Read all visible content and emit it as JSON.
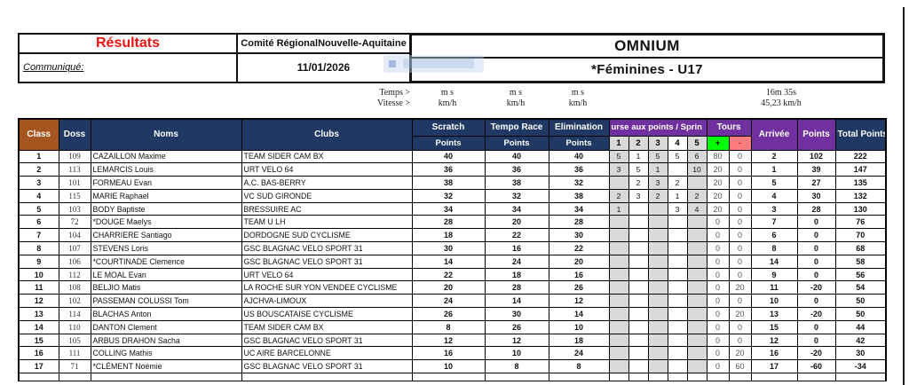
{
  "header": {
    "resultats": "Résultats",
    "communique": "Communiqué:",
    "comite": "Comité RégionalNouvelle-Aquitaine",
    "date": "11/01/2026",
    "title": "OMNIUM",
    "subtitle": "*Féminines - U17"
  },
  "meta": {
    "temps_label": "Temps >",
    "vitesse_label": "Vitesse >",
    "unit_time": "m s",
    "unit_speed": "km/h",
    "points_race_time": "16m 35s",
    "points_race_speed": "45,23 km/h"
  },
  "colors": {
    "navy_header": "#1F3864",
    "brown_header": "#A5551E",
    "purple_header": "#7030A0",
    "gray_cell": "#D9D9D9",
    "plus_green": "#00FF00",
    "minus_salmon": "#FF7C80",
    "resultats_red": "#EE1111"
  },
  "table": {
    "class_label": "Class",
    "doss_label": "Doss",
    "noms_label": "Noms",
    "clubs_label": "Clubs",
    "scratch_label": "Scratch",
    "tempo_label": "Tempo Race",
    "elimination_label": "Elimination",
    "points_label": "Points",
    "course_label": "urse aux points / Sprin",
    "sprint_cols": [
      "1",
      "2",
      "3",
      "4",
      "5"
    ],
    "tours_label": "Tours",
    "plus_label": "+",
    "minus_label": "-",
    "arrivee_label": "Arrivée",
    "points_col_label": "Points",
    "total_label": "Total Points",
    "rows": [
      {
        "class": "1",
        "doss": "109",
        "nom": "CAZAILLON Maxime",
        "club": "TEAM SIDER CAM BX",
        "scratch": "40",
        "tempo": "40",
        "elimination": "40",
        "sprints": [
          "5",
          "1",
          "5",
          "5",
          "6"
        ],
        "tours_plus": "80",
        "tours_minus": "0",
        "arrivee": "2",
        "points": "102",
        "total": "222"
      },
      {
        "class": "2",
        "doss": "113",
        "nom": "LEMARCIS Louis",
        "club": "URT VELO 64",
        "scratch": "36",
        "tempo": "36",
        "elimination": "36",
        "sprints": [
          "3",
          "5",
          "1",
          "",
          "10"
        ],
        "tours_plus": "20",
        "tours_minus": "0",
        "arrivee": "1",
        "points": "39",
        "total": "147"
      },
      {
        "class": "3",
        "doss": "101",
        "nom": "FORMEAU Evan",
        "club": "A.C. BAS-BERRY",
        "scratch": "38",
        "tempo": "38",
        "elimination": "32",
        "sprints": [
          "",
          "2",
          "3",
          "2",
          ""
        ],
        "tours_plus": "20",
        "tours_minus": "0",
        "arrivee": "5",
        "points": "27",
        "total": "135"
      },
      {
        "class": "4",
        "doss": "115",
        "nom": "MARIE Raphael",
        "club": "VC SUD GIRONDE",
        "scratch": "32",
        "tempo": "32",
        "elimination": "38",
        "sprints": [
          "2",
          "3",
          "2",
          "1",
          "2"
        ],
        "tours_plus": "20",
        "tours_minus": "0",
        "arrivee": "4",
        "points": "30",
        "total": "132"
      },
      {
        "class": "5",
        "doss": "103",
        "nom": "BODY Baptiste",
        "club": "BRESSUIRE AC",
        "scratch": "34",
        "tempo": "34",
        "elimination": "34",
        "sprints": [
          "1",
          "",
          "",
          "3",
          "4"
        ],
        "tours_plus": "20",
        "tours_minus": "0",
        "arrivee": "3",
        "points": "28",
        "total": "130"
      },
      {
        "class": "6",
        "doss": "72",
        "nom": "*DOUGE Maelys",
        "club": "TEAM U LH",
        "scratch": "28",
        "tempo": "20",
        "elimination": "28",
        "sprints": [
          "",
          "",
          "",
          "",
          ""
        ],
        "tours_plus": "0",
        "tours_minus": "0",
        "arrivee": "7",
        "points": "0",
        "total": "76"
      },
      {
        "class": "7",
        "doss": "104",
        "nom": "CHARRIERE Santiago",
        "club": "DORDOGNE SUD CYCLISME",
        "scratch": "18",
        "tempo": "22",
        "elimination": "30",
        "sprints": [
          "",
          "",
          "",
          "",
          ""
        ],
        "tours_plus": "0",
        "tours_minus": "0",
        "arrivee": "6",
        "points": "0",
        "total": "70"
      },
      {
        "class": "8",
        "doss": "107",
        "nom": "STEVENS Loris",
        "club": "GSC BLAGNAC VELO SPORT 31",
        "scratch": "30",
        "tempo": "16",
        "elimination": "22",
        "sprints": [
          "",
          "",
          "",
          "",
          ""
        ],
        "tours_plus": "0",
        "tours_minus": "0",
        "arrivee": "8",
        "points": "0",
        "total": "68"
      },
      {
        "class": "9",
        "doss": "106",
        "nom": "*COURTINADE Clemence",
        "club": "GSC BLAGNAC VELO SPORT 31",
        "scratch": "14",
        "tempo": "24",
        "elimination": "20",
        "sprints": [
          "",
          "",
          "",
          "",
          ""
        ],
        "tours_plus": "0",
        "tours_minus": "0",
        "arrivee": "14",
        "points": "0",
        "total": "58"
      },
      {
        "class": "10",
        "doss": "112",
        "nom": "LE MOAL Evan",
        "club": "URT VELO 64",
        "scratch": "22",
        "tempo": "18",
        "elimination": "16",
        "sprints": [
          "",
          "",
          "",
          "",
          ""
        ],
        "tours_plus": "0",
        "tours_minus": "0",
        "arrivee": "9",
        "points": "0",
        "total": "56"
      },
      {
        "class": "11",
        "doss": "108",
        "nom": "BELJIO Matis",
        "club": "LA ROCHE SUR YON VENDEE CYCLISME",
        "scratch": "20",
        "tempo": "28",
        "elimination": "26",
        "sprints": [
          "",
          "",
          "",
          "",
          ""
        ],
        "tours_plus": "0",
        "tours_minus": "20",
        "arrivee": "11",
        "points": "-20",
        "total": "54"
      },
      {
        "class": "12",
        "doss": "102",
        "nom": "PASSEMAN COLUSSI Tom",
        "club": "AJCHVA-LIMOUX",
        "scratch": "24",
        "tempo": "14",
        "elimination": "12",
        "sprints": [
          "",
          "",
          "",
          "",
          ""
        ],
        "tours_plus": "0",
        "tours_minus": "0",
        "arrivee": "10",
        "points": "0",
        "total": "50"
      },
      {
        "class": "13",
        "doss": "114",
        "nom": "BLACHAS Anton",
        "club": "US BOUSCATAISE CYCLISME",
        "scratch": "26",
        "tempo": "30",
        "elimination": "14",
        "sprints": [
          "",
          "",
          "",
          "",
          ""
        ],
        "tours_plus": "0",
        "tours_minus": "20",
        "arrivee": "13",
        "points": "-20",
        "total": "50"
      },
      {
        "class": "14",
        "doss": "110",
        "nom": "DANTON Clement",
        "club": "TEAM SIDER CAM BX",
        "scratch": "8",
        "tempo": "26",
        "elimination": "10",
        "sprints": [
          "",
          "",
          "",
          "",
          ""
        ],
        "tours_plus": "0",
        "tours_minus": "0",
        "arrivee": "15",
        "points": "0",
        "total": "44"
      },
      {
        "class": "15",
        "doss": "105",
        "nom": "ARBUS DRAHON Sacha",
        "club": "GSC BLAGNAC VELO SPORT 31",
        "scratch": "12",
        "tempo": "12",
        "elimination": "18",
        "sprints": [
          "",
          "",
          "",
          "",
          ""
        ],
        "tours_plus": "0",
        "tours_minus": "0",
        "arrivee": "12",
        "points": "0",
        "total": "42"
      },
      {
        "class": "16",
        "doss": "111",
        "nom": "COLLING Mathis",
        "club": "UC AIRE BARCELONNE",
        "scratch": "16",
        "tempo": "10",
        "elimination": "24",
        "sprints": [
          "",
          "",
          "",
          "",
          ""
        ],
        "tours_plus": "0",
        "tours_minus": "20",
        "arrivee": "16",
        "points": "-20",
        "total": "30"
      },
      {
        "class": "17",
        "doss": "71",
        "nom": "*CLÉMENT Noémie",
        "club": "GSC BLAGNAC VELO SPORT 31",
        "scratch": "10",
        "tempo": "8",
        "elimination": "8",
        "sprints": [
          "",
          "",
          "",
          "",
          ""
        ],
        "tours_plus": "0",
        "tours_minus": "60",
        "arrivee": "17",
        "points": "-60",
        "total": "-34"
      }
    ]
  }
}
